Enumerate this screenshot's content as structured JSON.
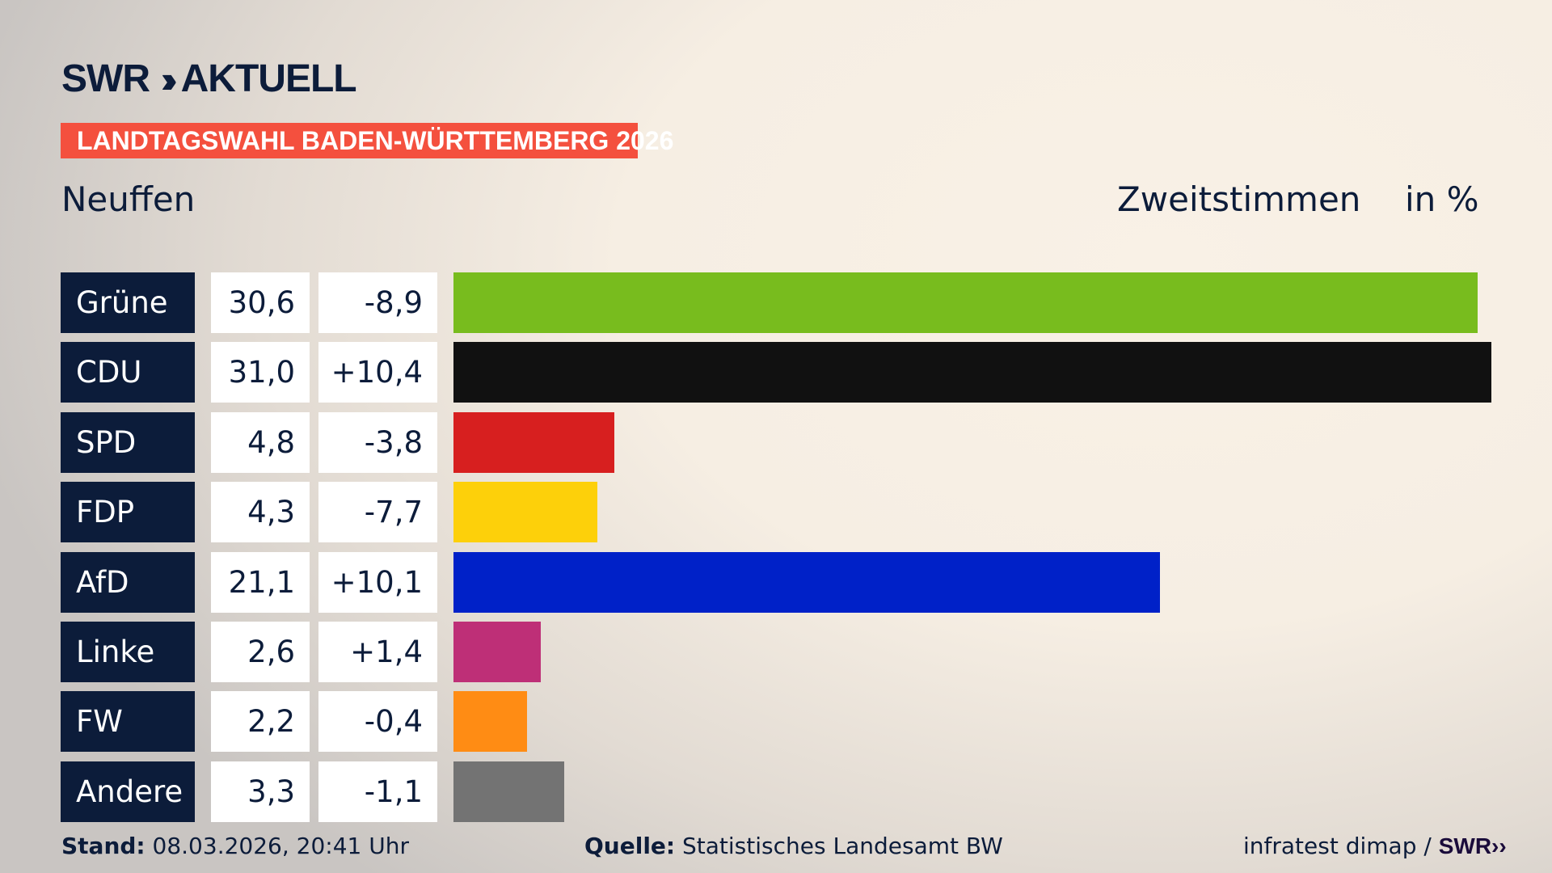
{
  "header": {
    "logo_text": "SWR» AKTUELL",
    "banner": "LANDTAGSWAHL BADEN-WÜRTTEMBERG 2026",
    "place": "Neuffen",
    "measure": "Zweitstimmen",
    "unit": "in %"
  },
  "chart_data": {
    "type": "bar",
    "orientation": "horizontal",
    "categories": [
      "Grüne",
      "CDU",
      "SPD",
      "FDP",
      "AfD",
      "Linke",
      "FW",
      "Andere"
    ],
    "values": [
      30.6,
      31.0,
      4.8,
      4.3,
      21.1,
      2.6,
      2.2,
      3.3
    ],
    "value_labels": [
      "30,6",
      "31,0",
      "4,8",
      "4,3",
      "21,1",
      "2,6",
      "2,2",
      "3,3"
    ],
    "diff_labels": [
      "-8,9",
      "+10,4",
      "-3,8",
      "-7,7",
      "+10,1",
      "+1,4",
      "-0,4",
      "-1,1"
    ],
    "colors": [
      "#78bc1e",
      "#111111",
      "#d71f1f",
      "#fdd00a",
      "#0021c8",
      "#be2f77",
      "#ff8c14",
      "#737373"
    ]
  },
  "footer": {
    "stand_label": "Stand:",
    "stand_value": "08.03.2026, 20:41 Uhr",
    "source_label": "Quelle:",
    "source_value": "Statistisches Landesamt BW",
    "credit": "infratest dimap /",
    "credit_logo": "SWR»"
  }
}
